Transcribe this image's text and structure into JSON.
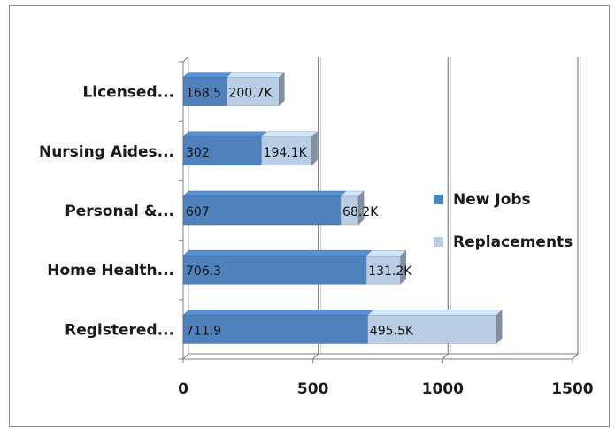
{
  "chart_data": {
    "type": "bar",
    "orientation": "horizontal",
    "stacked": true,
    "style": "3d",
    "categories": [
      "Licensed...",
      "Nursing Aides...",
      "Personal &...",
      "Home Health...",
      "Registered..."
    ],
    "series": [
      {
        "name": "New Jobs",
        "color": "#4f81bd",
        "values": [
          168.5,
          302,
          607,
          706.3,
          711.9
        ],
        "labels": [
          "168.5",
          "302",
          "607",
          "706.3",
          "711.9"
        ]
      },
      {
        "name": "Replacements",
        "color": "#b9cde5",
        "values": [
          200.7,
          194.1,
          68.2,
          131.2,
          495.5
        ],
        "labels": [
          "200.7K",
          "194.1K",
          "68.2K",
          "131.2K",
          "495.5K"
        ]
      }
    ],
    "xticks": [
      "0",
      "500",
      "1000",
      "1500"
    ],
    "xlim": [
      0,
      1500
    ],
    "grid": true,
    "legend_position": "right"
  }
}
